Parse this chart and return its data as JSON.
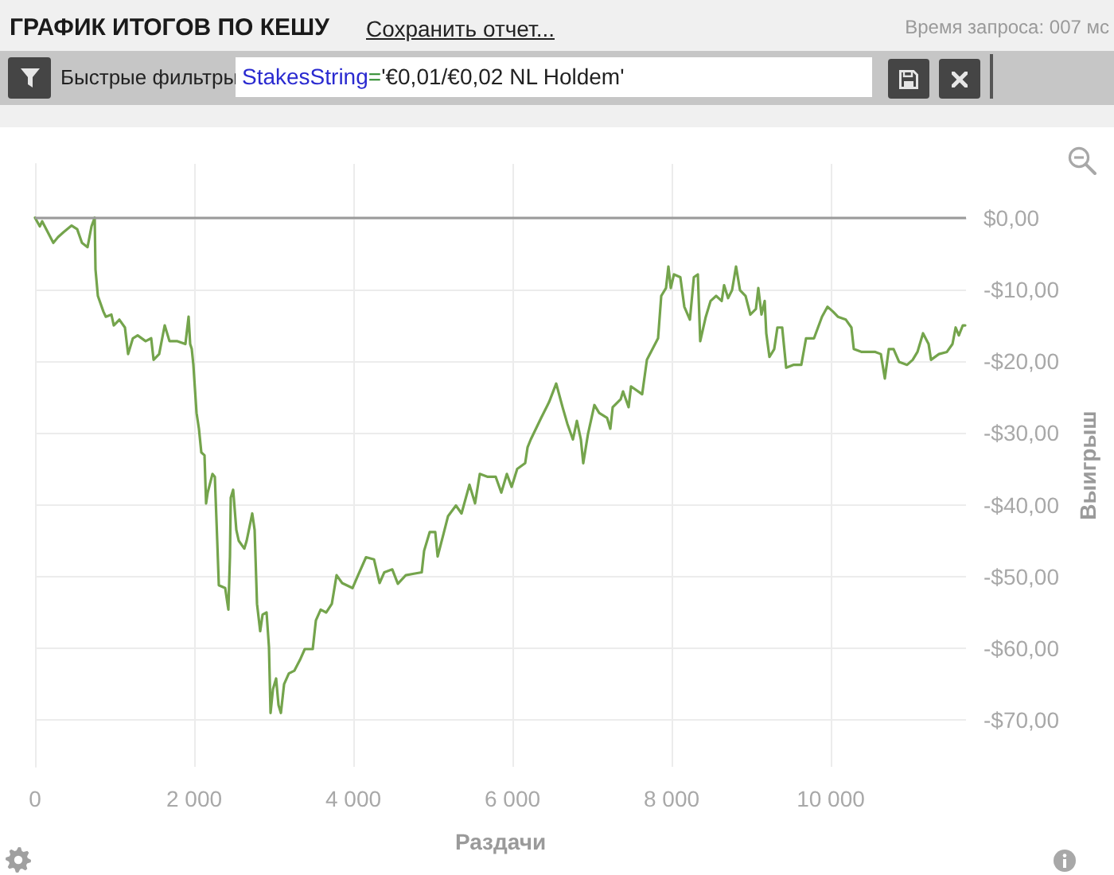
{
  "chart_data": {
    "type": "line",
    "title": "ГРАФИК ИТОГОВ ПО КЕШУ",
    "xlabel": "Раздачи",
    "ylabel": "Выигрыш",
    "annotations": [
      "Сохранить отчет...",
      "Время запроса: 007 мс",
      "Быстрые фильтры",
      "StakesString='€0,01/€0,02 NL Holdem'"
    ],
    "x": [
      0,
      60,
      90,
      160,
      230,
      290,
      360,
      460,
      530,
      590,
      660,
      710,
      750,
      760,
      790,
      860,
      890,
      960,
      990,
      1060,
      1130,
      1170,
      1230,
      1290,
      1390,
      1460,
      1490,
      1560,
      1630,
      1690,
      1790,
      1890,
      1930,
      1950,
      1970,
      1990,
      2030,
      2060,
      2090,
      2130,
      2150,
      2170,
      2230,
      2260,
      2290,
      2310,
      2390,
      2430,
      2450,
      2460,
      2490,
      2530,
      2560,
      2630,
      2660,
      2730,
      2760,
      2790,
      2830,
      2860,
      2910,
      2940,
      2960,
      2990,
      3030,
      3060,
      3090,
      3130,
      3190,
      3260,
      3330,
      3390,
      3490,
      3530,
      3590,
      3660,
      3730,
      3790,
      3860,
      3990,
      4060,
      4160,
      4260,
      4330,
      4390,
      4490,
      4560,
      4660,
      4760,
      4860,
      4890,
      4960,
      5030,
      5060,
      5130,
      5190,
      5290,
      5360,
      5460,
      5530,
      5590,
      5690,
      5790,
      5860,
      5930,
      5990,
      6060,
      6160,
      6190,
      6230,
      6360,
      6460,
      6550,
      6630,
      6690,
      6760,
      6810,
      6860,
      6890,
      6950,
      7030,
      7090,
      7190,
      7230,
      7260,
      7360,
      7390,
      7460,
      7490,
      7630,
      7690,
      7760,
      7830,
      7870,
      7930,
      7960,
      7990,
      8030,
      8110,
      8160,
      8230,
      8280,
      8330,
      8360,
      8430,
      8490,
      8560,
      8630,
      8660,
      8710,
      8760,
      8810,
      8860,
      8930,
      8990,
      9060,
      9090,
      9130,
      9170,
      9190,
      9230,
      9290,
      9330,
      9390,
      9440,
      9530,
      9630,
      9690,
      9790,
      9890,
      9960,
      10030,
      10090,
      10190,
      10260,
      10290,
      10390,
      10560,
      10630,
      10680,
      10730,
      10790,
      10860,
      10960,
      11030,
      11090,
      11160,
      11230,
      11260,
      11360,
      11460,
      11530,
      11570,
      11610,
      11660,
      11690
    ],
    "values": [
      0,
      -1.2,
      -0.5,
      -2,
      -3.5,
      -2.7,
      -2,
      -1.1,
      -1.6,
      -3.5,
      -4.1,
      -1.2,
      0,
      -7.2,
      -10.9,
      -13.1,
      -13.8,
      -13.5,
      -15,
      -14.2,
      -15.3,
      -19,
      -16.8,
      -16.4,
      -17.2,
      -16.8,
      -19.8,
      -19,
      -15,
      -17.2,
      -17.2,
      -17.6,
      -13.8,
      -17.6,
      -18.3,
      -20.5,
      -27.2,
      -29.4,
      -32.7,
      -33.1,
      -39.8,
      -38.3,
      -35.7,
      -36.1,
      -45,
      -51.2,
      -51.6,
      -54.6,
      -47.2,
      -39,
      -37.9,
      -43.5,
      -45,
      -46.1,
      -45,
      -41.2,
      -43.5,
      -53.8,
      -57.6,
      -55.3,
      -55,
      -59.8,
      -69,
      -65.7,
      -64.2,
      -67.9,
      -69,
      -65,
      -63.5,
      -63.1,
      -61.6,
      -60.1,
      -60.1,
      -56.1,
      -54.6,
      -55,
      -53.8,
      -49.8,
      -50.9,
      -51.6,
      -49.8,
      -47.3,
      -47.6,
      -50.9,
      -49.4,
      -49,
      -51,
      -49.8,
      -49.6,
      -49.4,
      -46.4,
      -43.8,
      -43.8,
      -47.2,
      -44.2,
      -41.6,
      -40.1,
      -41.2,
      -37.2,
      -39.8,
      -35.7,
      -36.1,
      -36.1,
      -38.3,
      -35.7,
      -37.5,
      -35,
      -34.2,
      -32,
      -30.9,
      -27.9,
      -25.7,
      -23.1,
      -26.4,
      -28.7,
      -30.9,
      -28.3,
      -30.9,
      -34.2,
      -30.1,
      -26.1,
      -27.2,
      -27.9,
      -29.4,
      -26.4,
      -25.3,
      -24.2,
      -26.4,
      -23.5,
      -24.6,
      -19.8,
      -18.3,
      -16.8,
      -10.9,
      -9.8,
      -6.8,
      -9.8,
      -7.9,
      -8.3,
      -12.4,
      -14.2,
      -8.3,
      -7.9,
      -17.2,
      -13.8,
      -11.6,
      -10.9,
      -11.6,
      -9.4,
      -11.2,
      -10.1,
      -6.8,
      -10.1,
      -10.9,
      -13.5,
      -12.7,
      -9.8,
      -13.5,
      -11.6,
      -16.1,
      -19.4,
      -18.3,
      -15.3,
      -15.3,
      -20.9,
      -20.5,
      -20.5,
      -16.8,
      -16.8,
      -13.8,
      -12.4,
      -13.1,
      -13.8,
      -14.2,
      -15.3,
      -18.3,
      -18.7,
      -18.7,
      -19,
      -22.4,
      -18.3,
      -18.3,
      -20.1,
      -20.5,
      -19.8,
      -18.7,
      -16.1,
      -17.6,
      -19.8,
      -19,
      -18.7,
      -17.6,
      -15.3,
      -16.4,
      -15,
      -15
    ],
    "color": "#74a44c",
    "marker": "none",
    "line_style": "solid",
    "xlim": [
      0,
      11700
    ],
    "xticks": [
      0,
      {
        "value": 2000,
        "label": "2 000"
      },
      {
        "value": 4000,
        "label": "4 000"
      },
      {
        "value": 6000,
        "label": "6 000"
      },
      {
        "value": 8000,
        "label": "8 000"
      },
      {
        "value": 10000,
        "label": "10 000"
      }
    ],
    "ylim": [
      -76.5,
      7.5
    ],
    "yticks": [
      {
        "value": 0,
        "label": "$0,00"
      },
      {
        "value": -10,
        "label": "-$10,00"
      },
      {
        "value": -20,
        "label": "-$20,00"
      },
      {
        "value": -30,
        "label": "-$30,00"
      },
      {
        "value": -40,
        "label": "-$40,00"
      },
      {
        "value": -50,
        "label": "-$50,00"
      },
      {
        "value": -60,
        "label": "-$60,00"
      },
      {
        "value": -70,
        "label": "-$70,00"
      }
    ],
    "grid": true,
    "ref_lines": [
      {
        "axis": "y",
        "value": 0,
        "color": "#9a9a9a"
      }
    ]
  }
}
